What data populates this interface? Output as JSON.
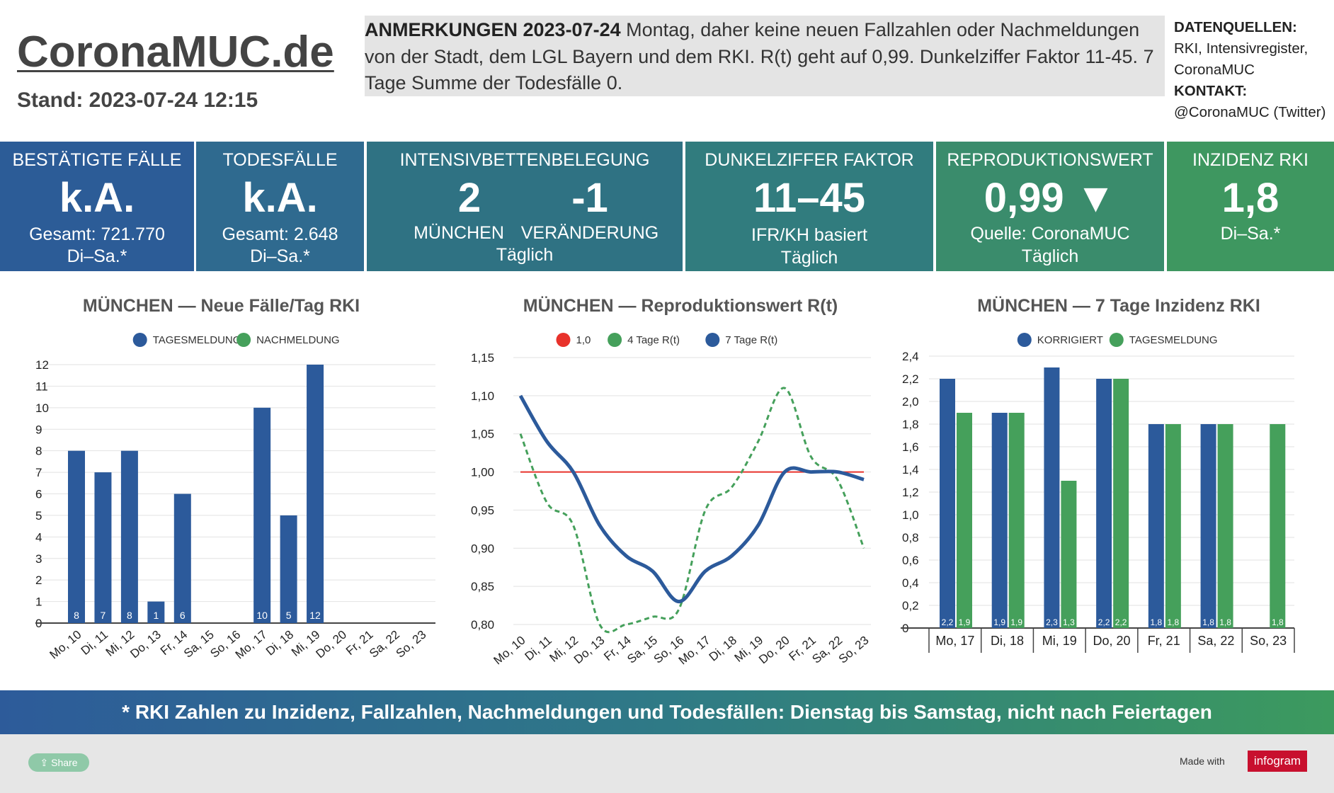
{
  "header": {
    "site_title": "CoronaMUC.de",
    "stand": "Stand: 2023-07-24 12:15",
    "notes_label": "ANMERKUNGEN 2023-07-24",
    "notes_text": "Montag, daher keine neuen Fallzahlen oder Nachmeldungen von der Stadt, dem LGL Bayern und dem RKI. R(t) geht auf 0,99. Dunkelziffer Faktor 11-45. 7 Tage Summe der Todesfälle 0.",
    "sources_label": "DATENQUELLEN:",
    "sources_text": "RKI, Intensivregister, CoronaMUC",
    "contact_label": "KONTAKT:",
    "contact_text": "@CoronaMUC (Twitter)"
  },
  "kpis": {
    "cases": {
      "title": "BESTÄTIGTE FÄLLE",
      "value": "k.A.",
      "line1": "Gesamt: 721.770",
      "line2": "Di–Sa.*"
    },
    "deaths": {
      "title": "TODESFÄLLE",
      "value": "k.A.",
      "line1": "Gesamt: 2.648",
      "line2": "Di–Sa.*"
    },
    "icu": {
      "title": "INTENSIVBETTENBELEGUNG",
      "value_a": "2",
      "value_b": "-1",
      "label_a": "MÜNCHEN",
      "label_b": "VERÄNDERUNG",
      "line2": "Täglich"
    },
    "dark": {
      "title": "DUNKELZIFFER FAKTOR",
      "value": "11–45",
      "line1": "IFR/KH basiert",
      "line2": "Täglich"
    },
    "r": {
      "title": "REPRODUKTIONSWERT",
      "value": "0,99 ▼",
      "line1": "Quelle: CoronaMUC",
      "line2": "Täglich"
    },
    "incidence": {
      "title": "INZIDENZ RKI",
      "value": "1,8",
      "line1": "Di–Sa.*"
    }
  },
  "colors": {
    "blue": "#2c5a9b",
    "green": "#45a05b",
    "red": "#e8322b",
    "kpi": [
      "#2c5c97",
      "#2f6a8f",
      "#2f7283",
      "#317c7e",
      "#3a8c6c",
      "#3e9760"
    ]
  },
  "chart_data": [
    {
      "type": "bar",
      "title": "MÜNCHEN — Neue Fälle/Tag RKI",
      "categories": [
        "Mo, 10",
        "Di, 11",
        "Mi, 12",
        "Do, 13",
        "Fr, 14",
        "Sa, 15",
        "So, 16",
        "Mo, 17",
        "Di, 18",
        "Mi, 19",
        "Do, 20",
        "Fr, 21",
        "Sa, 22",
        "So, 23"
      ],
      "series": [
        {
          "name": "TAGESMELDUNG",
          "color": "#2c5a9b",
          "values": [
            8,
            7,
            8,
            1,
            6,
            null,
            null,
            10,
            5,
            12,
            null,
            null,
            null,
            null
          ]
        },
        {
          "name": "NACHMELDUNG",
          "color": "#45a05b",
          "values": [
            0,
            0,
            0,
            0,
            0,
            null,
            null,
            0,
            0,
            0,
            null,
            null,
            null,
            null
          ]
        }
      ],
      "ylim": [
        0,
        12
      ],
      "yticks": [
        "0",
        "1",
        "2",
        "3",
        "4",
        "5",
        "6",
        "7",
        "8",
        "9",
        "10",
        "11",
        "12"
      ],
      "legend": "top"
    },
    {
      "type": "line",
      "title": "MÜNCHEN — Reproduktionswert R(t)",
      "categories": [
        "Mo, 10",
        "Di, 11",
        "Mi, 12",
        "Do, 13",
        "Fr, 14",
        "Sa, 15",
        "So, 16",
        "Mo, 17",
        "Di, 18",
        "Mi, 19",
        "Do, 20",
        "Fr, 21",
        "Sa, 22",
        "So, 23"
      ],
      "series": [
        {
          "name": "1,0",
          "color": "#e8322b",
          "style": "solid",
          "values": [
            1.0,
            1.0,
            1.0,
            1.0,
            1.0,
            1.0,
            1.0,
            1.0,
            1.0,
            1.0,
            1.0,
            1.0,
            1.0,
            1.0
          ]
        },
        {
          "name": "4 Tage R(t)",
          "color": "#45a05b",
          "style": "dashed",
          "values": [
            1.05,
            0.96,
            0.93,
            0.8,
            0.8,
            0.81,
            0.82,
            0.95,
            0.98,
            1.04,
            1.11,
            1.02,
            0.99,
            0.9
          ]
        },
        {
          "name": "7 Tage R(t)",
          "color": "#2c5a9b",
          "style": "solid",
          "values": [
            1.1,
            1.04,
            1.0,
            0.93,
            0.89,
            0.87,
            0.83,
            0.87,
            0.89,
            0.93,
            1.0,
            1.0,
            1.0,
            0.99
          ]
        }
      ],
      "ylim": [
        0.8,
        1.15
      ],
      "yticks": [
        "0,80",
        "0,85",
        "0,90",
        "0,95",
        "1,00",
        "1,05",
        "1,10",
        "1,15"
      ],
      "legend": "top"
    },
    {
      "type": "bar",
      "title": "MÜNCHEN — 7 Tage Inzidenz RKI",
      "categories": [
        "Mo, 17",
        "Di, 18",
        "Mi, 19",
        "Do, 20",
        "Fr, 21",
        "Sa, 22",
        "So, 23"
      ],
      "series": [
        {
          "name": "KORRIGIERT",
          "color": "#2c5a9b",
          "values": [
            2.2,
            1.9,
            2.3,
            2.2,
            1.8,
            1.8,
            null
          ],
          "labels": [
            "2,2",
            "1,9",
            "2,3",
            "2,2",
            "1,8",
            "1,8",
            ""
          ]
        },
        {
          "name": "TAGESMELDUNG",
          "color": "#45a05b",
          "values": [
            1.9,
            1.9,
            1.3,
            2.2,
            1.8,
            1.8,
            1.8
          ],
          "labels": [
            "1,9",
            "1,9",
            "1,3",
            "2,2",
            "1,8",
            "1,8",
            "1,8"
          ]
        }
      ],
      "ylim": [
        0,
        2.4
      ],
      "yticks": [
        "0",
        "0,2",
        "0,4",
        "0,6",
        "0,8",
        "1,0",
        "1,2",
        "1,4",
        "1,6",
        "1,8",
        "2,0",
        "2,2",
        "2,4"
      ],
      "legend": "top"
    }
  ],
  "footer": {
    "note": "* RKI Zahlen zu Inzidenz, Fallzahlen, Nachmeldungen und Todesfällen: Dienstag bis Samstag, nicht nach Feiertagen",
    "share_label": "Share",
    "made_with": "Made with",
    "infogram": "infogram"
  }
}
